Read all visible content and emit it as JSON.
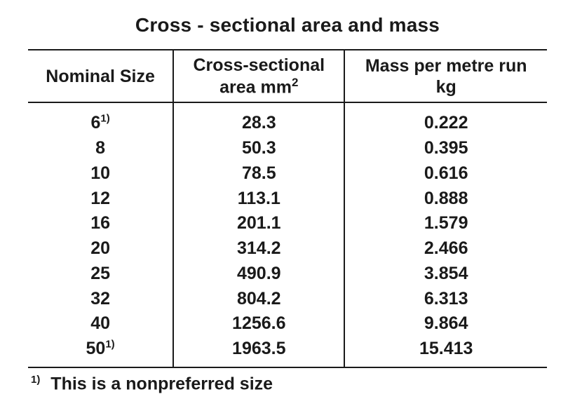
{
  "title": "Cross - sectional area and mass",
  "columns": [
    {
      "lines": [
        "Nominal Size"
      ]
    },
    {
      "lines": [
        "Cross-sectional",
        "area mm"
      ],
      "sup": "2"
    },
    {
      "lines": [
        "Mass per metre run",
        "kg"
      ]
    }
  ],
  "rows": [
    {
      "size": "6",
      "size_ftn": "1)",
      "area": "28.3",
      "mass": "0.222"
    },
    {
      "size": "8",
      "size_ftn": "",
      "area": "50.3",
      "mass": "0.395"
    },
    {
      "size": "10",
      "size_ftn": "",
      "area": "78.5",
      "mass": "0.616"
    },
    {
      "size": "12",
      "size_ftn": "",
      "area": "113.1",
      "mass": "0.888"
    },
    {
      "size": "16",
      "size_ftn": "",
      "area": "201.1",
      "mass": "1.579"
    },
    {
      "size": "20",
      "size_ftn": "",
      "area": "314.2",
      "mass": "2.466"
    },
    {
      "size": "25",
      "size_ftn": "",
      "area": "490.9",
      "mass": "3.854"
    },
    {
      "size": "32",
      "size_ftn": "",
      "area": "804.2",
      "mass": "6.313"
    },
    {
      "size": "40",
      "size_ftn": "",
      "area": "1256.6",
      "mass": "9.864"
    },
    {
      "size": "50",
      "size_ftn": "1)",
      "area": "1963.5",
      "mass": "15.413"
    }
  ],
  "footnote": {
    "ref": "1)",
    "text": "This is a nonpreferred size"
  }
}
